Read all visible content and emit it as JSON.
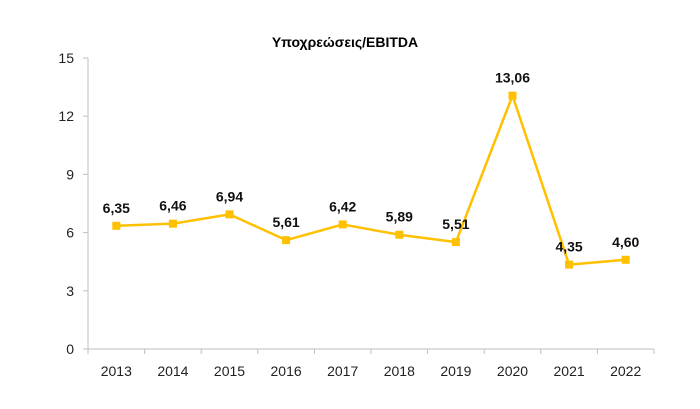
{
  "chart_data": {
    "type": "line",
    "title": "Υποχρεώσεις/EBITDA",
    "xlabel": "",
    "ylabel": "",
    "categories": [
      "2013",
      "2014",
      "2015",
      "2016",
      "2017",
      "2018",
      "2019",
      "2020",
      "2021",
      "2022"
    ],
    "series": [
      {
        "name": "Υποχρεώσεις/EBITDA",
        "values": [
          6.35,
          6.46,
          6.94,
          5.61,
          6.42,
          5.89,
          5.51,
          13.06,
          4.35,
          4.6
        ],
        "labels": [
          "6,35",
          "6,46",
          "6,94",
          "5,61",
          "6,42",
          "5,89",
          "5,51",
          "13,06",
          "4,35",
          "4,60"
        ],
        "color": "#FFC000",
        "marker": "square"
      }
    ],
    "ylim": [
      0,
      15
    ],
    "yticks": [
      0,
      3,
      6,
      9,
      12,
      15
    ],
    "grid": false,
    "legend": "none"
  }
}
